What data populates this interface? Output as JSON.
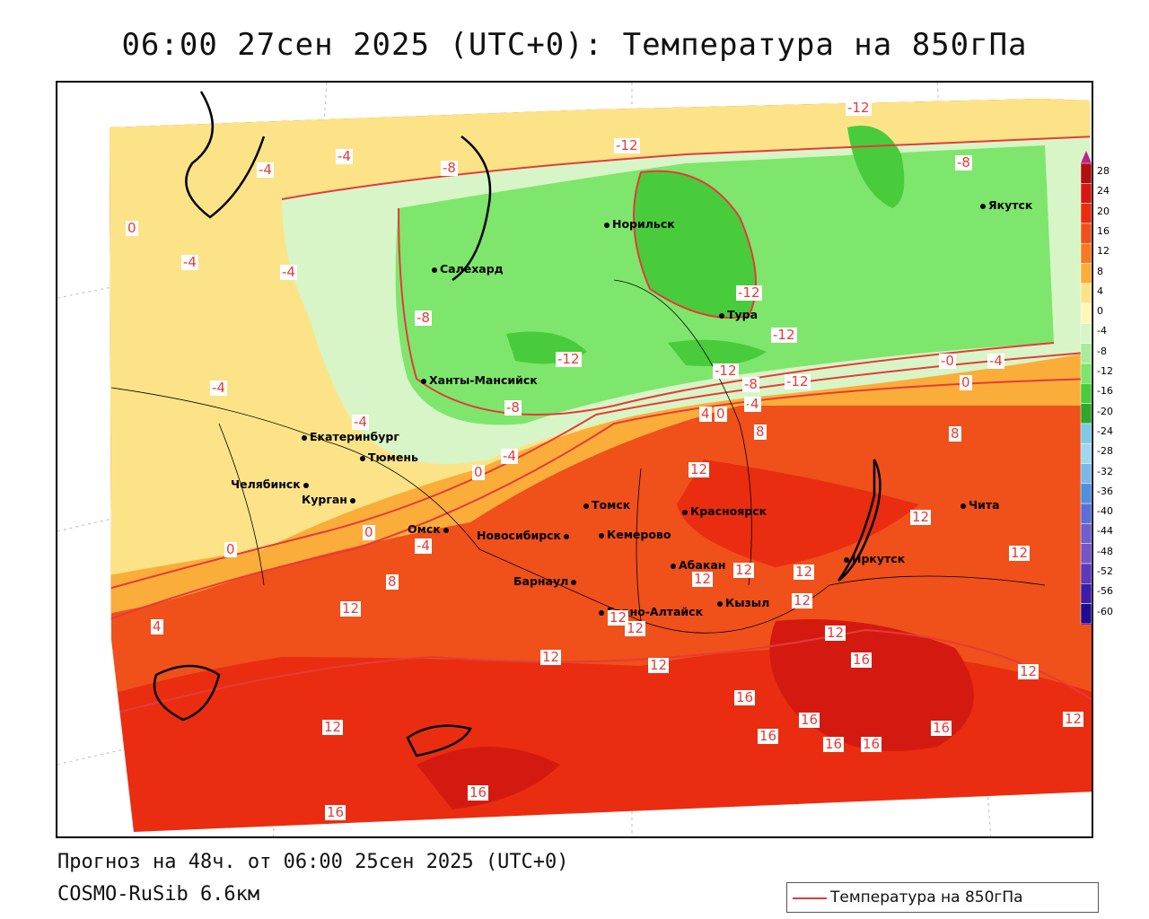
{
  "title": "06:00 27сен 2025 (UTC+0): Температура на 850гПа",
  "footer": {
    "forecast": "Прогноз на 48ч. от 06:00 25сен 2025 (UTC+0)",
    "model": "COSMO-RuSib 6.6км"
  },
  "legend": {
    "label": "Температура на 850гПа",
    "color": "#e63a3a"
  },
  "colorbar": {
    "ticks": [
      "28",
      "24",
      "20",
      "16",
      "12",
      "8",
      "4",
      "0",
      "-4",
      "-8",
      "-12",
      "-16",
      "-20",
      "-24",
      "-28",
      "-32",
      "-36",
      "-40",
      "-44",
      "-48",
      "-52",
      "-56",
      "-60"
    ],
    "colors": [
      "#b01010",
      "#d41a10",
      "#ea2d10",
      "#f0501a",
      "#f57a22",
      "#fbad3a",
      "#fde387",
      "#fff6b8",
      "#d7f5c6",
      "#a9ed98",
      "#7ee66c",
      "#48cc3c",
      "#2ea82a",
      "#7fc9e6",
      "#9fd6f2",
      "#79b8ea",
      "#4f8fe0",
      "#5a6fd8",
      "#6e60d0",
      "#7456c8",
      "#5a3ab8",
      "#3a1ea8",
      "#200c90"
    ]
  },
  "cities": [
    {
      "name": "Норильск"
    },
    {
      "name": "Якутск"
    },
    {
      "name": "Салехард"
    },
    {
      "name": "Тура"
    },
    {
      "name": "Ханты-Мансийск"
    },
    {
      "name": "Екатеринбург"
    },
    {
      "name": "Тюмень"
    },
    {
      "name": "Челябинск"
    },
    {
      "name": "Курган"
    },
    {
      "name": "Омск"
    },
    {
      "name": "Новосибирск"
    },
    {
      "name": "Томск"
    },
    {
      "name": "Кемерово"
    },
    {
      "name": "Красноярск"
    },
    {
      "name": "Барнаул"
    },
    {
      "name": "Абакан"
    },
    {
      "name": "Горно-Алтайск"
    },
    {
      "name": "Кызыл"
    },
    {
      "name": "Иркутск"
    },
    {
      "name": "Чита"
    }
  ],
  "isolines": [
    "-12",
    "-4",
    "-8",
    "0",
    "-4",
    "-4",
    "-8",
    "-12",
    "-12",
    "-12",
    "-12",
    "-12",
    "-8",
    "-12",
    "-4",
    "-4",
    "-4",
    "-8",
    "-4",
    "-8",
    "-4",
    "-4",
    "0",
    "4",
    "0",
    "4",
    "8",
    "-0",
    "0",
    "8",
    "12",
    "0",
    "-4",
    "12",
    "0",
    "12",
    "12",
    "12",
    "8",
    "4",
    "12",
    "12",
    "12",
    "12",
    "12",
    "12",
    "12",
    "12",
    "12",
    "16",
    "16",
    "16",
    "16",
    "16",
    "16",
    "16",
    "12",
    "16",
    "16",
    "12"
  ]
}
